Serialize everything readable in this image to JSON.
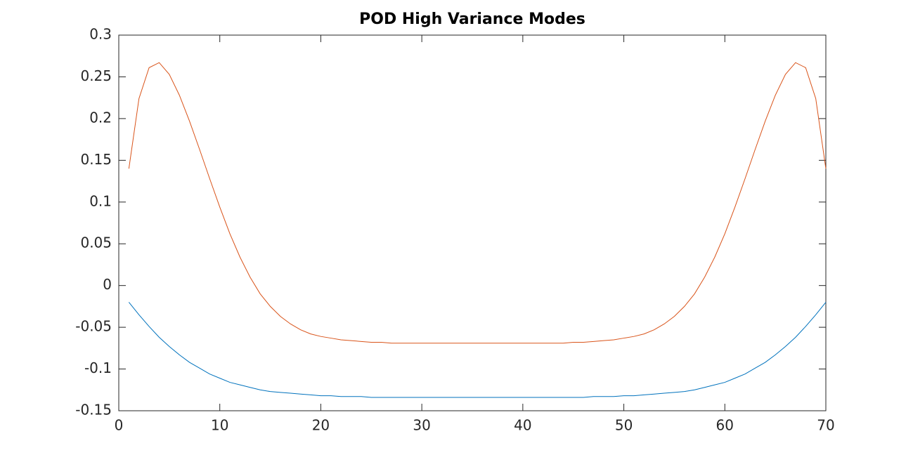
{
  "chart_data": {
    "type": "line",
    "title": "POD High Variance Modes",
    "x": [
      1,
      2,
      3,
      4,
      5,
      6,
      7,
      8,
      9,
      10,
      11,
      12,
      13,
      14,
      15,
      16,
      17,
      18,
      19,
      20,
      21,
      22,
      23,
      24,
      25,
      26,
      27,
      28,
      29,
      30,
      31,
      32,
      33,
      34,
      35,
      36,
      37,
      38,
      39,
      40,
      41,
      42,
      43,
      44,
      45,
      46,
      47,
      48,
      49,
      50,
      51,
      52,
      53,
      54,
      55,
      56,
      57,
      58,
      59,
      60,
      61,
      62,
      63,
      64,
      65,
      66,
      67,
      68,
      69,
      70
    ],
    "series": [
      {
        "color": "#0072bd",
        "values": [
          -0.02,
          -0.035,
          -0.049,
          -0.062,
          -0.073,
          -0.083,
          -0.092,
          -0.099,
          -0.106,
          -0.111,
          -0.116,
          -0.119,
          -0.122,
          -0.125,
          -0.127,
          -0.128,
          -0.129,
          -0.13,
          -0.131,
          -0.132,
          -0.132,
          -0.133,
          -0.133,
          -0.133,
          -0.134,
          -0.134,
          -0.134,
          -0.134,
          -0.134,
          -0.134,
          -0.134,
          -0.134,
          -0.134,
          -0.134,
          -0.134,
          -0.134,
          -0.134,
          -0.134,
          -0.134,
          -0.134,
          -0.134,
          -0.134,
          -0.134,
          -0.134,
          -0.134,
          -0.134,
          -0.133,
          -0.133,
          -0.133,
          -0.132,
          -0.132,
          -0.131,
          -0.13,
          -0.129,
          -0.128,
          -0.127,
          -0.125,
          -0.122,
          -0.119,
          -0.116,
          -0.111,
          -0.106,
          -0.099,
          -0.092,
          -0.083,
          -0.073,
          -0.062,
          -0.049,
          -0.035,
          -0.02
        ]
      },
      {
        "color": "#d95319",
        "values": [
          0.14,
          0.224,
          0.261,
          0.267,
          0.253,
          0.228,
          0.197,
          0.163,
          0.128,
          0.094,
          0.062,
          0.034,
          0.01,
          -0.01,
          -0.025,
          -0.037,
          -0.046,
          -0.053,
          -0.058,
          -0.061,
          -0.063,
          -0.065,
          -0.066,
          -0.067,
          -0.068,
          -0.068,
          -0.069,
          -0.069,
          -0.069,
          -0.069,
          -0.069,
          -0.069,
          -0.069,
          -0.069,
          -0.069,
          -0.069,
          -0.069,
          -0.069,
          -0.069,
          -0.069,
          -0.069,
          -0.069,
          -0.069,
          -0.069,
          -0.068,
          -0.068,
          -0.067,
          -0.066,
          -0.065,
          -0.063,
          -0.061,
          -0.058,
          -0.053,
          -0.046,
          -0.037,
          -0.025,
          -0.01,
          0.01,
          0.034,
          0.062,
          0.094,
          0.128,
          0.163,
          0.197,
          0.228,
          0.253,
          0.267,
          0.261,
          0.224,
          0.14
        ]
      }
    ],
    "xlim": [
      0,
      70
    ],
    "xticks": [
      0,
      10,
      20,
      30,
      40,
      50,
      60,
      70
    ],
    "ylim": [
      -0.15,
      0.3
    ],
    "yticks": [
      -0.15,
      -0.1,
      -0.05,
      0,
      0.05,
      0.1,
      0.15,
      0.2,
      0.25,
      0.3
    ],
    "grid": false
  }
}
